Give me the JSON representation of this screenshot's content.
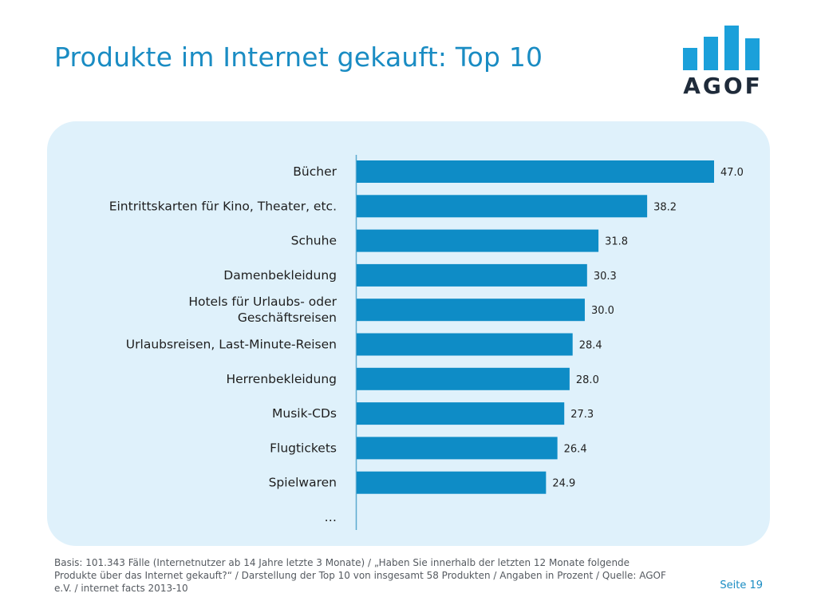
{
  "title": "Produkte im Internet gekauft: Top 10",
  "logo": {
    "text": "AGOF"
  },
  "chart_data": {
    "type": "bar",
    "orientation": "horizontal",
    "categories": [
      [
        "Bücher"
      ],
      [
        "Eintrittskarten für Kino, Theater, etc."
      ],
      [
        "Schuhe"
      ],
      [
        "Damenbekleidung"
      ],
      [
        "Hotels für Urlaubs- oder",
        "Geschäftsreisen"
      ],
      [
        "Urlaubsreisen, Last-Minute-Reisen"
      ],
      [
        "Herrenbekleidung"
      ],
      [
        "Musik-CDs"
      ],
      [
        "Flugtickets"
      ],
      [
        "Spielwaren"
      ]
    ],
    "values": [
      47.0,
      38.2,
      31.8,
      30.3,
      30.0,
      28.4,
      28.0,
      27.3,
      26.4,
      24.9
    ],
    "value_labels": [
      "47.0",
      "38.2",
      "31.8",
      "30.3",
      "30.0",
      "28.4",
      "28.0",
      "27.3",
      "26.4",
      "24.9"
    ],
    "trailing_label": "…",
    "xlim": [
      0,
      47.0
    ],
    "bar_color": "#0e8cc6",
    "grid": false
  },
  "footnote": "Basis: 101.343 Fälle (Internetnutzer ab 14 Jahre letzte 3 Monate) / „Haben Sie innerhalb der letzten 12 Monate folgende Produkte über das Internet gekauft?“ / Darstellung der Top 10 von insgesamt 58 Produkten / Angaben in Prozent / Quelle: AGOF e.V. / internet facts 2013-10",
  "page_number": "Seite 19"
}
